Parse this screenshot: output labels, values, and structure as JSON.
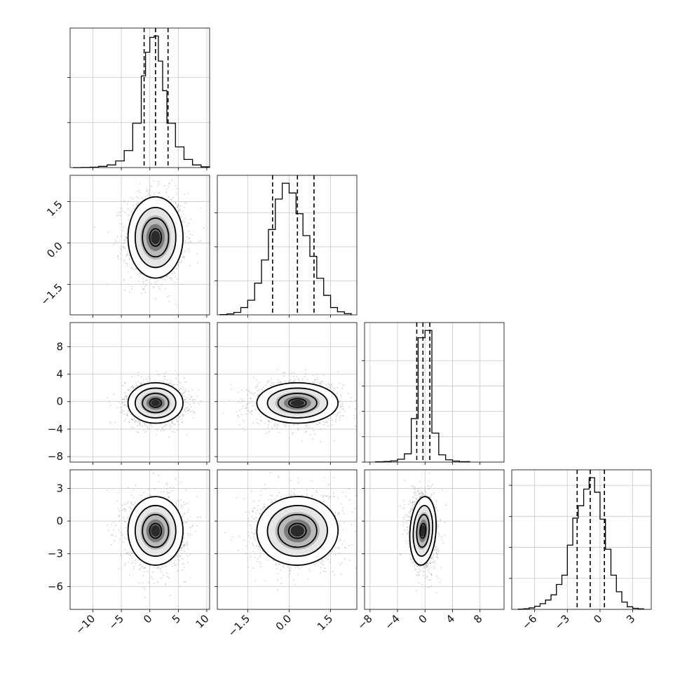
{
  "chart_data": {
    "type": "corner",
    "grid": true,
    "parameters": [
      {
        "index": 0,
        "range": [
          -14,
          10.5
        ],
        "ticks": [
          -10,
          -5,
          0,
          5,
          10
        ],
        "tick_labels": [
          "−10",
          "−5",
          "0",
          "5",
          "10"
        ],
        "quantiles": [
          -1.0,
          1.0,
          3.2
        ],
        "hist": {
          "edges": [
            -13.5,
            -12,
            -10.5,
            -9,
            -7.5,
            -6,
            -4.5,
            -3,
            -1.5,
            -0.75,
            0,
            0.75,
            1.5,
            2.25,
            3,
            4.5,
            6,
            7.5,
            9,
            10.5
          ],
          "counts": [
            0,
            1,
            3,
            8,
            18,
            45,
            115,
            300,
            620,
            780,
            880,
            890,
            720,
            520,
            300,
            140,
            55,
            18,
            5
          ]
        },
        "hist_yticks": [
          1,
          2
        ]
      },
      {
        "index": 1,
        "range": [
          -2.6,
          2.45
        ],
        "ticks": [
          -1.5,
          0.0,
          1.5
        ],
        "tick_labels": [
          "−1.5",
          "0.0",
          "1.5"
        ],
        "quantiles": [
          -0.6,
          0.3,
          0.9
        ],
        "hist": {
          "edges": [
            -2.5,
            -2.25,
            -2.0,
            -1.75,
            -1.5,
            -1.25,
            -1.0,
            -0.75,
            -0.5,
            -0.25,
            0.0,
            0.25,
            0.5,
            0.75,
            1.0,
            1.25,
            1.5,
            1.75,
            2.0,
            2.25
          ],
          "counts": [
            2,
            8,
            20,
            60,
            120,
            260,
            450,
            700,
            950,
            1080,
            1000,
            830,
            650,
            480,
            300,
            160,
            60,
            25,
            10
          ]
        },
        "hist_yticks": [
          1,
          2,
          3
        ]
      },
      {
        "index": 2,
        "range": [
          -8.8,
          11.5
        ],
        "ticks": [
          -8,
          -4,
          0,
          4,
          8
        ],
        "tick_labels": [
          "−8",
          "−4",
          "0",
          "4",
          "8"
        ],
        "left_ticks": [
          -8,
          -4,
          0,
          4,
          8
        ],
        "quantiles": [
          -1.2,
          -0.3,
          0.7
        ],
        "hist": {
          "edges": [
            -7.2,
            -6,
            -5,
            -4,
            -3,
            -2,
            -1,
            0,
            1,
            2,
            3,
            4,
            5,
            6.5
          ],
          "counts": [
            3,
            6,
            12,
            28,
            80,
            420,
            1200,
            1270,
            280,
            70,
            22,
            10,
            4
          ]
        },
        "hist_yticks": [
          0,
          1,
          2,
          3,
          4
        ]
      },
      {
        "index": 3,
        "range": [
          -8.1,
          4.7
        ],
        "ticks": [
          -6,
          -3,
          0,
          3
        ],
        "tick_labels": [
          "−6",
          "−3",
          "0",
          "3"
        ],
        "left_ticks": [
          -6,
          -3,
          0,
          3
        ],
        "quantiles": [
          -2.1,
          -0.9,
          0.4
        ],
        "hist": {
          "edges": [
            -7.5,
            -7,
            -6.5,
            -6,
            -5.5,
            -5,
            -4.5,
            -4,
            -3.5,
            -3,
            -2.5,
            -2,
            -1.5,
            -1,
            -0.5,
            0,
            0.5,
            1,
            1.5,
            2,
            2.5,
            3,
            3.5,
            4
          ],
          "counts": [
            2,
            6,
            14,
            30,
            55,
            90,
            140,
            240,
            330,
            620,
            880,
            1000,
            1160,
            1270,
            1130,
            870,
            580,
            330,
            170,
            70,
            25,
            10,
            5
          ]
        },
        "hist_yticks": [
          1,
          2,
          3,
          4
        ]
      }
    ],
    "pairs": [
      {
        "row": 1,
        "col": 0,
        "center": [
          1.0,
          0.2
        ],
        "sd": [
          2.3,
          0.7
        ],
        "corr": 0.0
      },
      {
        "row": 2,
        "col": 0,
        "center": [
          1.0,
          -0.2
        ],
        "sd": [
          2.3,
          1.4
        ],
        "corr": 0.0
      },
      {
        "row": 2,
        "col": 1,
        "center": [
          0.3,
          -0.2
        ],
        "sd": [
          0.7,
          1.4
        ],
        "corr": 0.0
      },
      {
        "row": 3,
        "col": 0,
        "center": [
          1.0,
          -0.9
        ],
        "sd": [
          2.3,
          1.5
        ],
        "corr": 0.0
      },
      {
        "row": 3,
        "col": 1,
        "center": [
          0.3,
          -0.9
        ],
        "sd": [
          0.7,
          1.5
        ],
        "corr": 0.05
      },
      {
        "row": 3,
        "col": 2,
        "center": [
          -0.3,
          -0.9
        ],
        "sd": [
          0.9,
          1.5
        ],
        "corr": -0.1
      }
    ]
  }
}
